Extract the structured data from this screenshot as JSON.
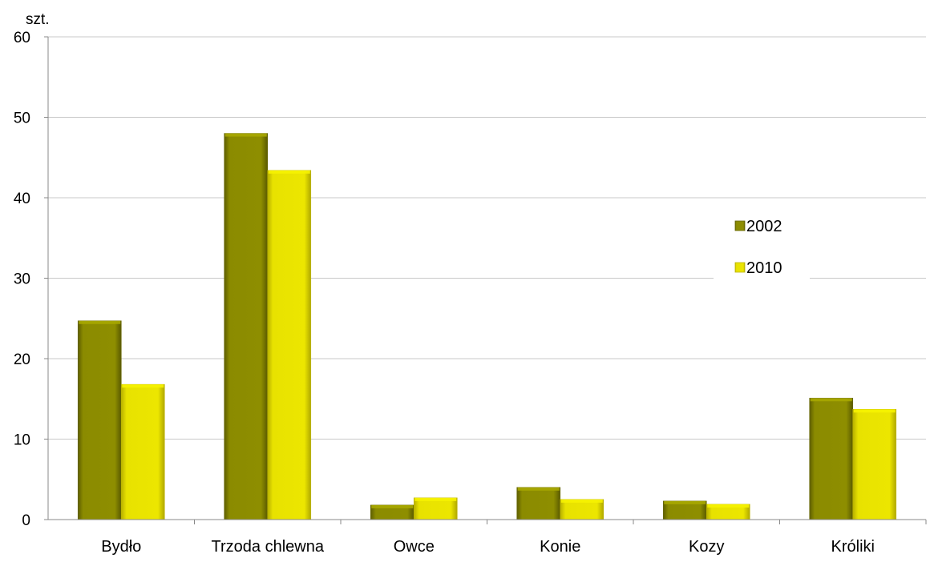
{
  "colors": {
    "series_2002": "#8b8b00",
    "series_2010": "#e6e000",
    "gridline": "#c8c8c8",
    "axis": "#888888",
    "text": "#000000"
  },
  "chart_data": {
    "type": "bar",
    "ylabel": "szt.",
    "xlabel": "",
    "title": "",
    "ylim": [
      0,
      60
    ],
    "yticks": [
      0,
      10,
      20,
      30,
      40,
      50,
      60
    ],
    "grid": true,
    "legend_position": "right",
    "categories": [
      "Bydło",
      "Trzoda chlewna",
      "Owce",
      "Konie",
      "Kozy",
      "Króliki"
    ],
    "series": [
      {
        "name": "2002",
        "values": [
          24.7,
          48.0,
          1.8,
          4.0,
          2.3,
          15.1
        ]
      },
      {
        "name": "2010",
        "values": [
          16.8,
          43.4,
          2.7,
          2.5,
          1.9,
          13.7
        ]
      }
    ]
  }
}
